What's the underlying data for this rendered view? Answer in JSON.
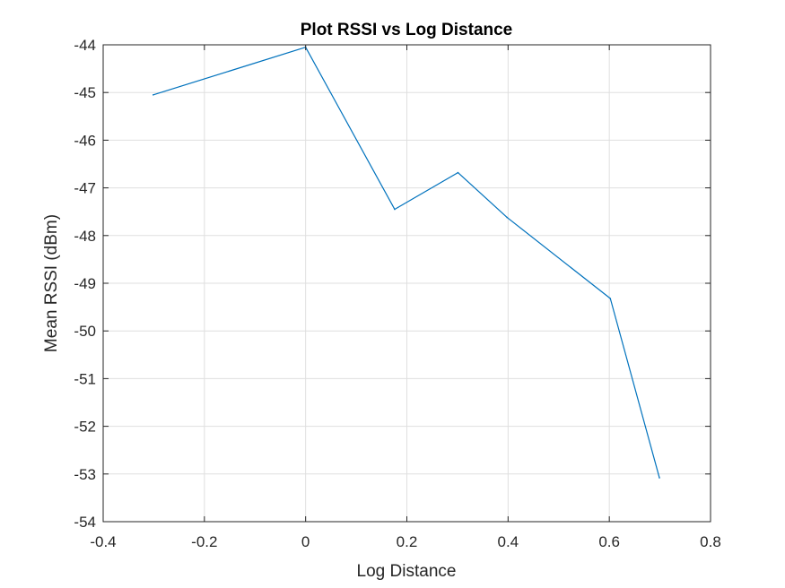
{
  "chart_data": {
    "type": "line",
    "title": "Plot RSSI vs Log Distance",
    "xlabel": "Log Distance",
    "ylabel": "Mean RSSI (dBm)",
    "xlim": [
      -0.4,
      0.8
    ],
    "ylim": [
      -54,
      -44
    ],
    "xticks": [
      -0.4,
      -0.2,
      0,
      0.2,
      0.4,
      0.6,
      0.8
    ],
    "xtick_labels": [
      "-0.4",
      "-0.2",
      "0",
      "0.2",
      "0.4",
      "0.6",
      "0.8"
    ],
    "yticks": [
      -54,
      -53,
      -52,
      -51,
      -50,
      -49,
      -48,
      -47,
      -46,
      -45,
      -44
    ],
    "ytick_labels": [
      "-54",
      "-53",
      "-52",
      "-51",
      "-50",
      "-49",
      "-48",
      "-47",
      "-46",
      "-45",
      "-44"
    ],
    "grid": true,
    "series": [
      {
        "name": "RSSI",
        "color": "#0072BD",
        "x": [
          -0.301,
          0,
          0.176,
          0.301,
          0.398,
          0.602,
          0.699
        ],
        "y": [
          -45.05,
          -44.05,
          -47.45,
          -46.68,
          -47.62,
          -49.32,
          -53.08
        ]
      }
    ]
  }
}
